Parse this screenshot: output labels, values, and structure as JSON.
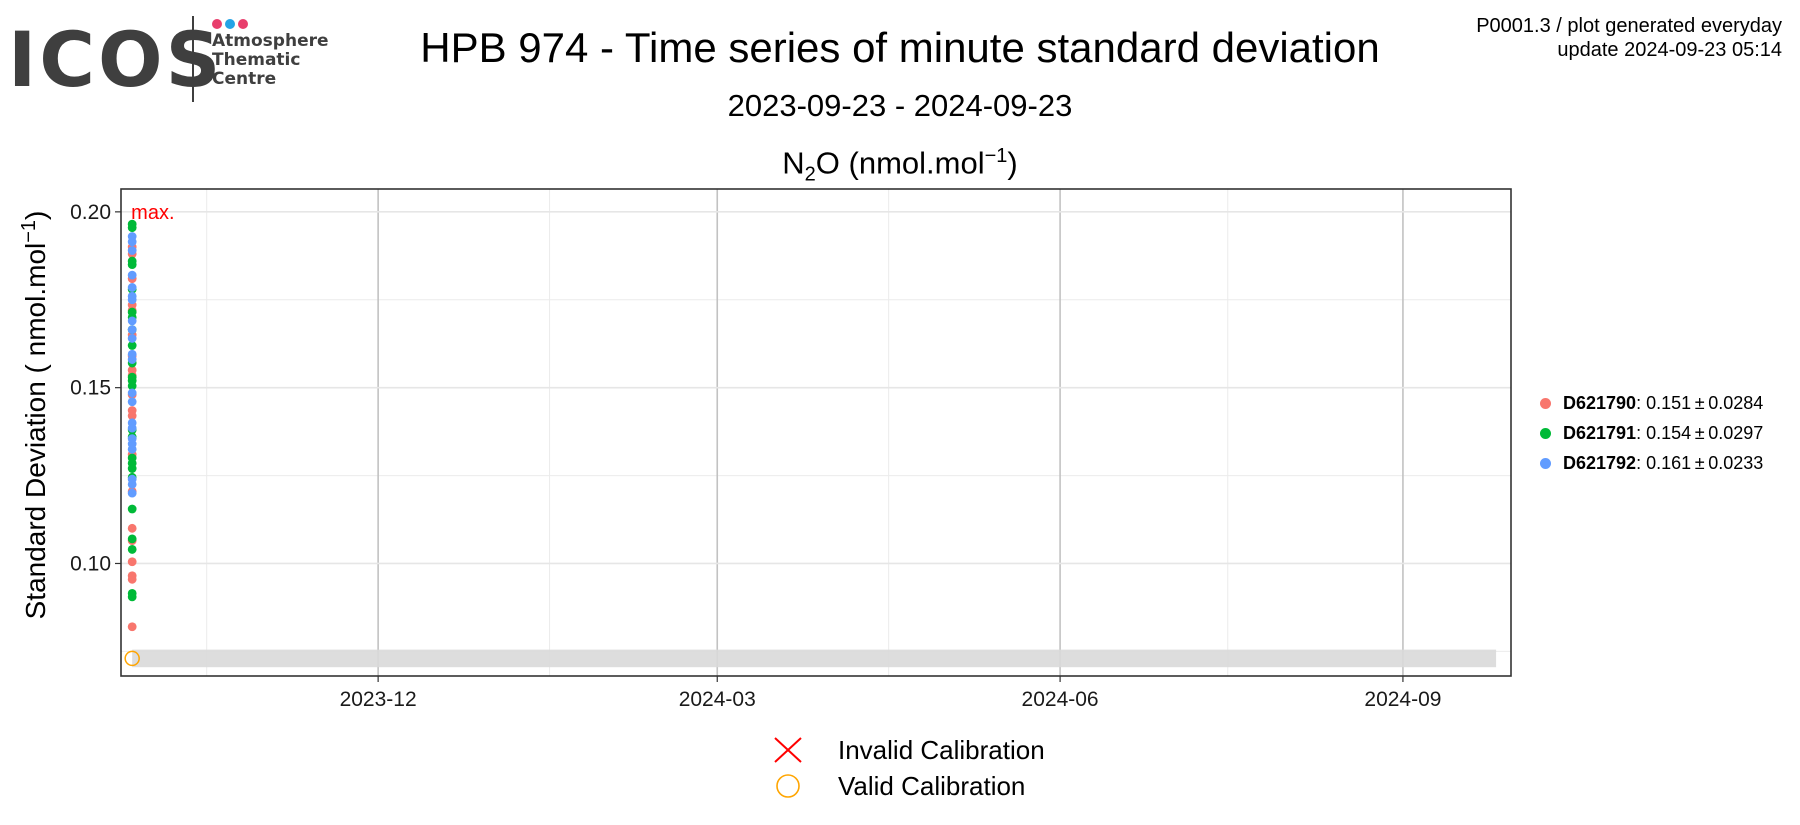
{
  "header": {
    "logo": {
      "word": "ICOS",
      "lines": [
        "Atmosphere",
        "Thematic",
        "Centre"
      ],
      "dot_colors": [
        "#e83e6c",
        "#23a3e6",
        "#e83e6c"
      ]
    },
    "title": "HPB 974 - Time series of minute standard deviation",
    "subtitle": "2023-09-23 - 2024-09-23",
    "meta_line1": "P0001.3 / plot generated everyday",
    "meta_line2": "update  2024-09-23 05:14"
  },
  "chart_data": {
    "type": "scatter",
    "panel_title": {
      "species": "N",
      "species_sub": "2",
      "species_tail": "O",
      "unit": " (nmol.mol",
      "unit_sup": "−1",
      "unit_tail": ")"
    },
    "ylabel": {
      "text": "Standard Deviation ( nmol.mol",
      "sup": "−1",
      "tail": ")"
    },
    "xlim": [
      "2023-09-23",
      "2024-09-30"
    ],
    "ylim": [
      0.068,
      0.2065
    ],
    "xticks": [
      {
        "value": "2023-12-01",
        "label": "2023-12"
      },
      {
        "value": "2024-03-01",
        "label": "2024-03"
      },
      {
        "value": "2024-06-01",
        "label": "2024-06"
      },
      {
        "value": "2024-09-01",
        "label": "2024-09"
      }
    ],
    "xminor": [
      "2023-10-16",
      "2024-01-16",
      "2024-04-16",
      "2024-07-16"
    ],
    "yticks": [
      0.1,
      0.15,
      0.2
    ],
    "yminor": [
      0.075,
      0.125,
      0.175
    ],
    "grid": true,
    "annotation": {
      "text": "max.",
      "x": "2023-09-26",
      "y": 0.2005,
      "color": "#ff0000"
    },
    "reference_band": {
      "y_low": 0.0705,
      "y_high": 0.0755,
      "x_start": "2023-09-26",
      "x_end": "2024-09-26",
      "color": "#d9d9d9"
    },
    "series": [
      {
        "name": "D621790",
        "stats": ": 0.151 ± 0.0284",
        "color": "#f8766d",
        "x": [
          "2023-09-26",
          "2023-09-26",
          "2023-09-26",
          "2023-09-26",
          "2023-09-26",
          "2023-09-26",
          "2023-09-26",
          "2023-09-26",
          "2023-09-26",
          "2023-09-26",
          "2023-09-26",
          "2023-09-26",
          "2023-09-26",
          "2023-09-26",
          "2023-09-26",
          "2023-09-26",
          "2023-09-26",
          "2023-09-26",
          "2023-09-26",
          "2023-09-26"
        ],
        "y": [
          0.082,
          0.0955,
          0.0965,
          0.1005,
          0.1065,
          0.11,
          0.1205,
          0.131,
          0.142,
          0.1435,
          0.148,
          0.1535,
          0.155,
          0.159,
          0.165,
          0.172,
          0.1735,
          0.181,
          0.188,
          0.19
        ]
      },
      {
        "name": "D621791",
        "stats": ": 0.154 ± 0.0297",
        "color": "#00ba38",
        "x": [
          "2023-09-26",
          "2023-09-26",
          "2023-09-26",
          "2023-09-26",
          "2023-09-26",
          "2023-09-26",
          "2023-09-26",
          "2023-09-26",
          "2023-09-26",
          "2023-09-26",
          "2023-09-26",
          "2023-09-26",
          "2023-09-26",
          "2023-09-26",
          "2023-09-26",
          "2023-09-26",
          "2023-09-26",
          "2023-09-26",
          "2023-09-26",
          "2023-09-26",
          "2023-09-26",
          "2023-09-26",
          "2023-09-26",
          "2023-09-26"
        ],
        "y": [
          0.0905,
          0.0915,
          0.104,
          0.107,
          0.1155,
          0.1245,
          0.127,
          0.1285,
          0.13,
          0.136,
          0.138,
          0.1505,
          0.152,
          0.153,
          0.157,
          0.162,
          0.1665,
          0.17,
          0.1715,
          0.178,
          0.185,
          0.186,
          0.1955,
          0.1965
        ]
      },
      {
        "name": "D621792",
        "stats": ": 0.161 ± 0.0233",
        "color": "#619cff",
        "x": [
          "2023-09-26",
          "2023-09-26",
          "2023-09-26",
          "2023-09-26",
          "2023-09-26",
          "2023-09-26",
          "2023-09-26",
          "2023-09-26",
          "2023-09-26",
          "2023-09-26",
          "2023-09-26",
          "2023-09-26",
          "2023-09-26",
          "2023-09-26",
          "2023-09-26",
          "2023-09-26",
          "2023-09-26",
          "2023-09-26",
          "2023-09-26",
          "2023-09-26",
          "2023-09-26",
          "2023-09-26"
        ],
        "y": [
          0.12,
          0.1225,
          0.124,
          0.1325,
          0.134,
          0.1355,
          0.1385,
          0.14,
          0.146,
          0.1485,
          0.158,
          0.1595,
          0.164,
          0.1665,
          0.169,
          0.175,
          0.176,
          0.1785,
          0.182,
          0.189,
          0.1915,
          0.193
        ]
      }
    ],
    "calibrations": [
      {
        "status": "valid",
        "x": "2023-09-26",
        "y": 0.073
      }
    ],
    "calibration_legend": [
      {
        "key": "invalid",
        "label": "Invalid Calibration",
        "color": "#ff0000",
        "symbol": "cross"
      },
      {
        "key": "valid",
        "label": "Valid Calibration",
        "color": "#ffa500",
        "symbol": "circle"
      }
    ],
    "legend_position": "right"
  }
}
